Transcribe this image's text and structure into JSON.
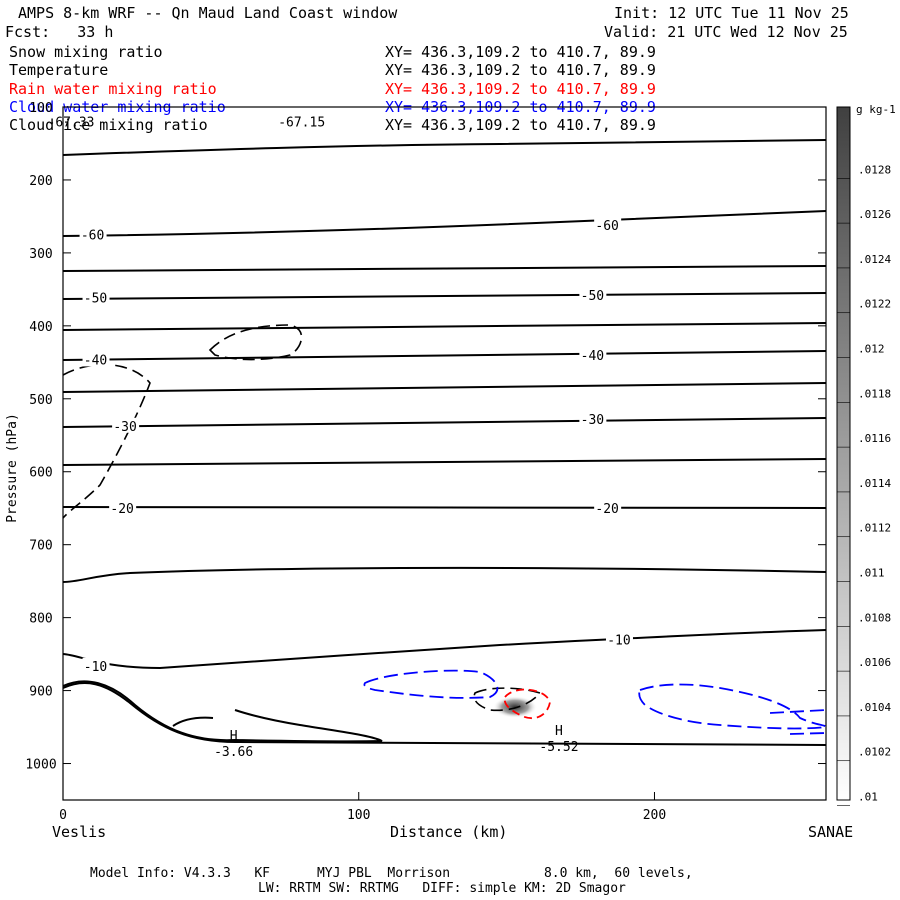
{
  "header": {
    "title": "AMPS 8-km WRF -- Qn Maud Land Coast window",
    "init": "Init: 12 UTC Tue 11 Nov 25",
    "fcst": "Fcst:   33 h",
    "valid": "Valid: 21 UTC Wed 12 Nov 25"
  },
  "legend": [
    {
      "label": "Snow mixing ratio",
      "xy": "XY= 436.3,109.2 to 410.7, 89.9",
      "color": "#000000"
    },
    {
      "label": "Temperature",
      "xy": "XY= 436.3,109.2 to 410.7, 89.9",
      "color": "#000000"
    },
    {
      "label": "Rain water mixing ratio",
      "xy": "XY= 436.3,109.2 to 410.7, 89.9",
      "color": "#ff0000"
    },
    {
      "label": "Cloud water mixing ratio",
      "xy": "XY= 436.3,109.2 to 410.7, 89.9",
      "color": "#0000ff"
    },
    {
      "label": "Cloud ice mixing ratio",
      "xy": "XY= 436.3,109.2 to 410.7, 89.9",
      "color": "#000000"
    }
  ],
  "footer": {
    "line1": "Model Info: V4.3.3   KF      MYJ PBL  Morrison            8.0 km,  60 levels,",
    "line2": "LW: RRTM SW: RRTMG   DIFF: simple KM: 2D Smagor"
  },
  "chart_data": {
    "type": "contour",
    "xlabel": "Distance (km)",
    "ylabel": "Pressure (hPa)",
    "xlim": [
      0,
      258
    ],
    "ylim": [
      1050,
      100
    ],
    "x_ticks": [
      0,
      100,
      200
    ],
    "y_ticks": [
      100,
      200,
      300,
      400,
      500,
      600,
      700,
      800,
      900,
      1000
    ],
    "left_endpoint": "Veslis",
    "right_endpoint": "SANAE",
    "colorbar": {
      "unit": "g kg-1",
      "labels": [
        ".0128",
        ".0126",
        ".0124",
        ".0122",
        ".012",
        ".0118",
        ".0116",
        ".0114",
        ".0112",
        ".011",
        ".0108",
        ".0106",
        ".0104",
        ".0102",
        ".01"
      ]
    },
    "temperature_labels": [
      {
        "text": "-60",
        "x": 10,
        "p": 275
      },
      {
        "text": "-60",
        "x": 184,
        "p": 262
      },
      {
        "text": "-50",
        "x": 11,
        "p": 361
      },
      {
        "text": "-50",
        "x": 179,
        "p": 358
      },
      {
        "text": "-40",
        "x": 11,
        "p": 446
      },
      {
        "text": "-40",
        "x": 179,
        "p": 440
      },
      {
        "text": "-30",
        "x": 21,
        "p": 537
      },
      {
        "text": "-30",
        "x": 179,
        "p": 528
      },
      {
        "text": "-20",
        "x": 20,
        "p": 650
      },
      {
        "text": "-20",
        "x": 184,
        "p": 650
      },
      {
        "text": "-10",
        "x": 11,
        "p": 866
      },
      {
        "text": "-10",
        "x": 188,
        "p": 830
      }
    ],
    "annotations": [
      {
        "text": "-67.15",
        "x": 78,
        "p": 127
      },
      {
        "text": "-67.33",
        "x": 0,
        "p": 127
      },
      {
        "text": "H",
        "x": 55,
        "p": 968
      },
      {
        "text": "-3.66",
        "x": 55,
        "p": 990
      },
      {
        "text": "H",
        "x": 165,
        "p": 961
      },
      {
        "text": "-5.52",
        "x": 165,
        "p": 983
      }
    ]
  }
}
